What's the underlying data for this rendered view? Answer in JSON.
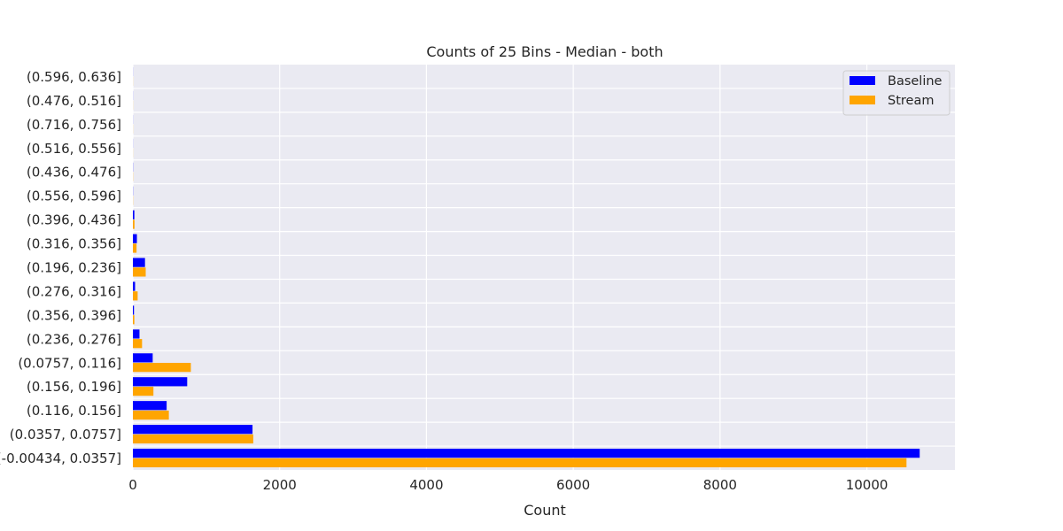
{
  "chart_data": {
    "type": "bar",
    "orientation": "horizontal",
    "title": "Counts of 25 Bins  - Median - both",
    "xlabel": "Count",
    "ylabel": "",
    "xlim": [
      0,
      11200
    ],
    "xticks": [
      0,
      2000,
      4000,
      6000,
      8000,
      10000
    ],
    "grid": true,
    "legend_position": "top-right",
    "categories": [
      "(0.596, 0.636]",
      "(0.476, 0.516]",
      "(0.716, 0.756]",
      "(0.516, 0.556]",
      "(0.436, 0.476]",
      "(0.556, 0.596]",
      "(0.396, 0.436]",
      "(0.316, 0.356]",
      "(0.196, 0.236]",
      "(0.276, 0.316]",
      "(0.356, 0.396]",
      "(0.236, 0.276]",
      "(0.0757, 0.116]",
      "(0.156, 0.196]",
      "(0.116, 0.156]",
      "(0.0357, 0.0757]",
      "(-0.00434, 0.0357]"
    ],
    "series": [
      {
        "name": "Baseline",
        "color": "#0000ff",
        "values": [
          1,
          1,
          1,
          1,
          2,
          2,
          20,
          55,
          165,
          30,
          15,
          90,
          270,
          740,
          460,
          1630,
          10720
        ]
      },
      {
        "name": "Stream",
        "color": "#ffa500",
        "values": [
          1,
          1,
          1,
          1,
          2,
          2,
          22,
          50,
          175,
          65,
          20,
          125,
          790,
          280,
          490,
          1640,
          10540
        ]
      }
    ]
  },
  "style": {
    "plot_background": "#eaeaf2",
    "grid_color": "#ffffff",
    "text_color": "#262626"
  }
}
